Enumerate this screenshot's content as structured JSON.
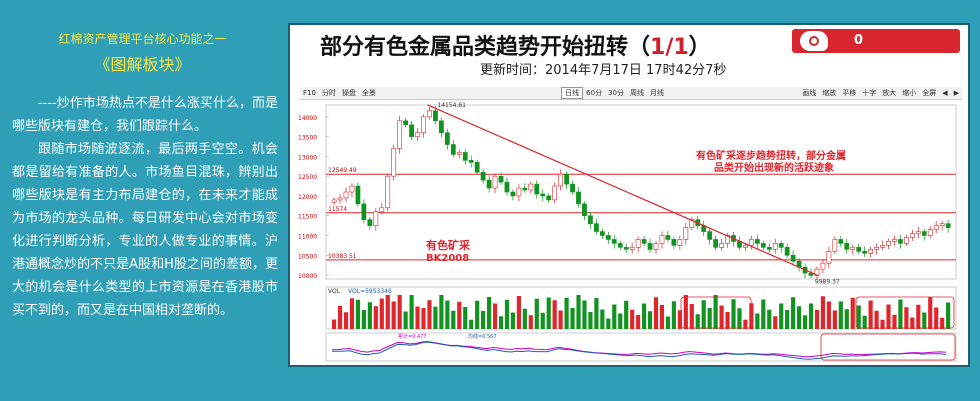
{
  "left": {
    "subtitle": "红棉资产管理平台核心功能之一",
    "title": "《图解板块》",
    "paragraphs": [
      "----炒作市场热点不是什么涨买什么，而是哪些版块有建仓，我们跟踪什么。",
      "跟随市场随波逐流，最后两手空空。机会都是留给有准备的人。市场鱼目混珠，辨别出哪些版块是有主力布局建仓的，在未来才能成为市场的龙头品种。每日研发中心会对市场变化进行判断分析，专业的人做专业的事情。沪港通概念炒的不只是A股和H股之间的差额，更大的机会是什么类型的上市资源是在香港股市买不到的，而又是在中国相对垄断的。"
    ]
  },
  "panel": {
    "headline_prefix": "部分有色金属品类趋势开始扭转（",
    "headline_num": "1/1",
    "headline_suffix": "）",
    "logo_zero": "0",
    "updated": "更新时间：2014年7月17日 17时42分7秒",
    "toolbar_left": [
      "F10",
      "分时",
      "操盘",
      "全景"
    ],
    "toolbar_mid": [
      "日线",
      "60分",
      "30分",
      "周线",
      "月线"
    ],
    "toolbar_right": [
      "画线",
      "缩放",
      "平移",
      "十字",
      "放大",
      "缩小",
      "全屏",
      "◀",
      "▶"
    ],
    "toolbar_active": "日线"
  },
  "chart_data": {
    "type": "candlestick",
    "y_ticks": [
      "14000",
      "13500",
      "13000",
      "12500",
      "12000",
      "11500",
      "11000",
      "10500",
      "10000"
    ],
    "ylim": [
      9900,
      14300
    ],
    "levels": [
      {
        "label": "12549.49",
        "value": 12549
      },
      {
        "label": "11574",
        "value": 11574
      },
      {
        "label": "10383.51",
        "value": 10383
      }
    ],
    "peak_label": "14154.61",
    "trough_label": "9989.37",
    "annotation_main": [
      "有色矿采逐步趋势扭转，部分金属",
      "品类开始出现新的活跃迹象"
    ],
    "annotation_bk": [
      "有色矿采",
      "BK2008"
    ],
    "vol_label": "VOL",
    "vol_value": "VOL=5953346",
    "ind_label_1": "累计=0.477",
    "ind_label_2": "均线=0.567",
    "price_series": [
      11900,
      11950,
      12100,
      12250,
      11800,
      11400,
      11250,
      11600,
      11700,
      12500,
      13200,
      13900,
      13800,
      13500,
      13600,
      14000,
      14154,
      13900,
      13600,
      13300,
      13050,
      13100,
      12900,
      12850,
      12600,
      12400,
      12200,
      12500,
      12350,
      12100,
      12000,
      12200,
      12150,
      12300,
      12050,
      12000,
      11900,
      12250,
      12550,
      12300,
      12100,
      11800,
      11500,
      11300,
      11100,
      11000,
      10900,
      10800,
      10700,
      10650,
      10700,
      10900,
      10800,
      10650,
      10800,
      11000,
      10900,
      10750,
      10900,
      11200,
      11400,
      11250,
      11100,
      10900,
      10700,
      10800,
      11000,
      10850,
      10700,
      10750,
      10900,
      10800,
      10700,
      10650,
      10800,
      10700,
      10500,
      10350,
      10200,
      10050,
      9989,
      10150,
      10300,
      10600,
      10900,
      10800,
      10650,
      10700,
      10600,
      10550,
      10650,
      10700,
      10750,
      10850,
      10900,
      10800,
      10950,
      11050,
      11100,
      11000,
      11150,
      11250,
      11300,
      11200
    ]
  },
  "colors": {
    "bg": "#2e9fb7",
    "accent": "#f7e43f",
    "up": "#e0262c",
    "down": "#10941f",
    "trend": "#e0262c"
  }
}
